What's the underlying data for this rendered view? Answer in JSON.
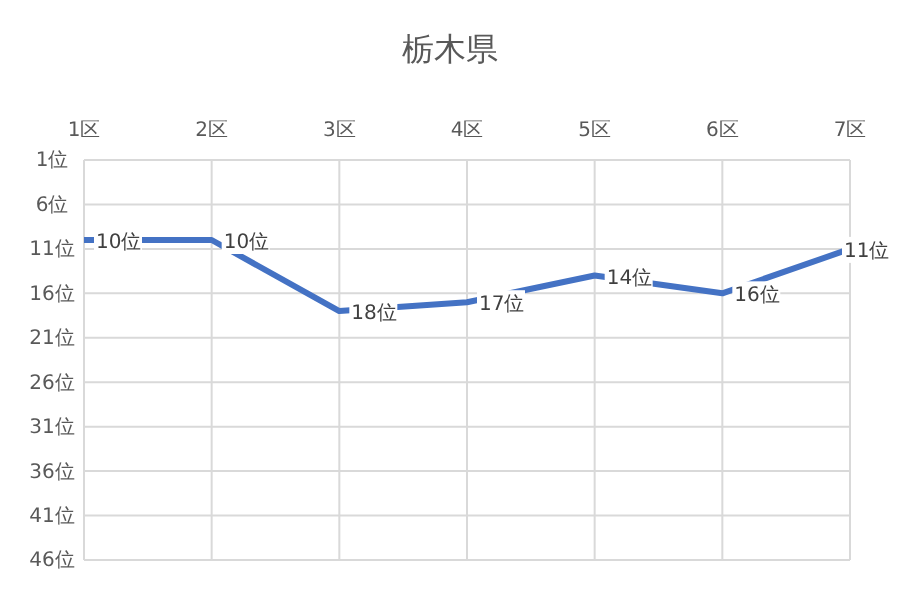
{
  "chart_data": {
    "type": "line",
    "title": "栃木県",
    "categories": [
      "1区",
      "2区",
      "3区",
      "4区",
      "5区",
      "6区",
      "7区"
    ],
    "series": [
      {
        "color": "#4472c4",
        "values": [
          10,
          10,
          18,
          17,
          14,
          16,
          11
        ],
        "value_labels": [
          "10位",
          "10位",
          "18位",
          "17位",
          "14位",
          "16位",
          "11位"
        ]
      }
    ],
    "ylim": [
      46,
      1
    ],
    "yticks": [
      {
        "value": 1,
        "label": "1位"
      },
      {
        "value": 6,
        "label": "6位"
      },
      {
        "value": 11,
        "label": "11位"
      },
      {
        "value": 16,
        "label": "16位"
      },
      {
        "value": 21,
        "label": "21位"
      },
      {
        "value": 26,
        "label": "26位"
      },
      {
        "value": 31,
        "label": "31位"
      },
      {
        "value": 36,
        "label": "36位"
      },
      {
        "value": 41,
        "label": "41位"
      },
      {
        "value": 46,
        "label": "46位"
      }
    ],
    "grid": true,
    "marker": "none",
    "line_style": "solid"
  }
}
